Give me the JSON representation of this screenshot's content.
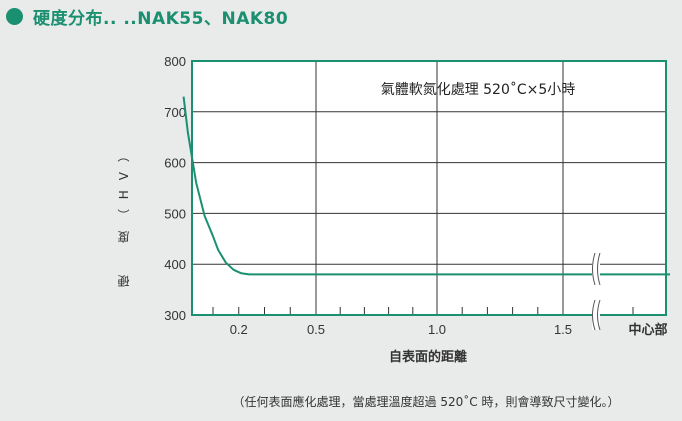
{
  "header": {
    "title": "硬度分布.. ..NAK55、NAK80"
  },
  "footnote": "（任何表面應化處理，當處理溫度超過 520˚C 時，則會導致尺寸變化。）",
  "chart_data": {
    "type": "line",
    "title": "硬度分布.. ..NAK55、NAK80",
    "annotation": "氣體軟氮化處理 520˚C×5小時",
    "xlabel": "自表面的距離",
    "ylabel": "硬　度（HV）",
    "ylim": [
      300,
      800
    ],
    "yticks": [
      "800",
      "700",
      "600",
      "500",
      "400",
      "300"
    ],
    "yvalues": [
      800,
      700,
      600,
      500,
      400,
      300
    ],
    "xtick_labels": [
      {
        "v": 0.2,
        "label": "0.2"
      },
      {
        "v": 0.5,
        "label": "0.5"
      },
      {
        "v": 1.0,
        "label": "1.0"
      },
      {
        "v": 1.5,
        "label": "1.5"
      },
      {
        "v": "center",
        "label": "中心部"
      }
    ],
    "minor_ticks": [
      0.1,
      0.2,
      0.3,
      0.4,
      0.6,
      0.7,
      0.8,
      0.9,
      1.1,
      1.2,
      1.3,
      1.4
    ],
    "xgrid": [
      0.5,
      1.0,
      1.5
    ],
    "series": [
      {
        "name": "NAK55/NAK80",
        "x": [
          0.03,
          0.04,
          0.06,
          0.08,
          0.1,
          0.12,
          0.15,
          0.18,
          0.21,
          0.24,
          1.5,
          1.7
        ],
        "y": [
          730,
          660,
          560,
          495,
          455,
          428,
          403,
          389,
          382,
          380,
          380,
          380
        ]
      }
    ],
    "axis_break": "after 1.5",
    "colors": {
      "line": "#1a9070",
      "frame": "#1a9070",
      "grid": "#333333"
    }
  }
}
